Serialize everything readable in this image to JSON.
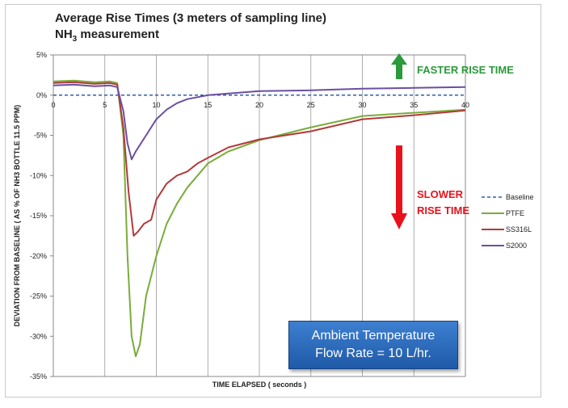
{
  "chart_data": {
    "type": "line",
    "title_line1": "Average Rise Times (3 meters of sampling line)",
    "title_line2_main": "NH",
    "title_line2_sub": "3",
    "title_line2_rest": " measurement",
    "xlabel": "TIME ELAPSED ( seconds )",
    "ylabel": "DEVIATION FROM BASELINE ( AS % OF NH3 BOTTLE 11.5 PPM)",
    "xlim": [
      0,
      40
    ],
    "ylim": [
      -35,
      5
    ],
    "x_ticks": [
      0,
      5,
      10,
      15,
      20,
      25,
      30,
      35,
      40
    ],
    "y_ticks": [
      "5%",
      "0%",
      "-5%",
      "-10%",
      "-15%",
      "-20%",
      "-25%",
      "-30%",
      "-35%"
    ],
    "y_tick_values": [
      5,
      0,
      -5,
      -10,
      -15,
      -20,
      -25,
      -30,
      -35
    ],
    "grid": "vertical",
    "legend_position": "right",
    "series": [
      {
        "name": "Baseline",
        "color": "#2e5fa8",
        "dash": true,
        "x": [
          0,
          40
        ],
        "y": [
          0,
          0
        ]
      },
      {
        "name": "PTFE",
        "color": "#7aac3a",
        "x": [
          0,
          2,
          4,
          5.5,
          6.2,
          6.8,
          7.2,
          7.6,
          8.0,
          8.4,
          9,
          10,
          11,
          12,
          13,
          14,
          15,
          17,
          20,
          25,
          30,
          35,
          40
        ],
        "y": [
          1.7,
          1.8,
          1.6,
          1.7,
          1.5,
          -5,
          -20,
          -30,
          -32.5,
          -31,
          -25,
          -20,
          -16,
          -13.5,
          -11.5,
          -10,
          -8.5,
          -7,
          -5.6,
          -4.0,
          -2.6,
          -2.2,
          -1.8
        ]
      },
      {
        "name": "SS316L",
        "color": "#b23b3b",
        "x": [
          0,
          2,
          4,
          5.5,
          6.2,
          6.8,
          7.3,
          7.8,
          8.2,
          8.8,
          9.5,
          10,
          11,
          12,
          13,
          14,
          15,
          17,
          20,
          25,
          30,
          35,
          40
        ],
        "y": [
          1.5,
          1.6,
          1.4,
          1.5,
          1.3,
          -4,
          -12,
          -17.5,
          -17,
          -16,
          -15.5,
          -13,
          -11,
          -10,
          -9.5,
          -8.5,
          -7.8,
          -6.5,
          -5.5,
          -4.5,
          -3.0,
          -2.5,
          -1.9
        ]
      },
      {
        "name": "S2000",
        "color": "#6b4fa0",
        "x": [
          0,
          2,
          4,
          5.5,
          6.2,
          6.8,
          7.2,
          7.6,
          8.0,
          9,
          10,
          11,
          12,
          13,
          15,
          20,
          25,
          30,
          35,
          40
        ],
        "y": [
          1.2,
          1.3,
          1.1,
          1.2,
          1.0,
          -2,
          -6,
          -8,
          -7,
          -5,
          -3,
          -1.8,
          -1.0,
          -0.5,
          0.0,
          0.5,
          0.6,
          0.8,
          0.9,
          1.0
        ]
      }
    ],
    "annotations": {
      "faster": "FASTER RISE TIME",
      "slower_line1": "SLOWER",
      "slower_line2": "RISE TIME",
      "faster_color": "#2a9a3a",
      "slower_color": "#e8121c"
    },
    "info_box": {
      "line1": "Ambient Temperature",
      "line2": "Flow Rate = 10 L/hr."
    }
  }
}
